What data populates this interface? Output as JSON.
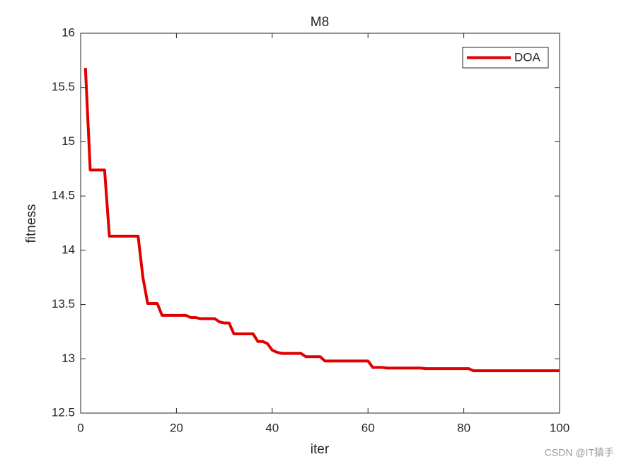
{
  "chart_data": {
    "type": "line",
    "title": "M8",
    "xlabel": "iter",
    "ylabel": "fitness",
    "x": [
      1,
      2,
      3,
      4,
      5,
      6,
      7,
      8,
      9,
      10,
      11,
      12,
      13,
      14,
      15,
      16,
      17,
      18,
      19,
      20,
      21,
      22,
      23,
      24,
      25,
      26,
      27,
      28,
      29,
      30,
      31,
      32,
      33,
      34,
      35,
      36,
      37,
      38,
      39,
      40,
      41,
      42,
      43,
      44,
      45,
      46,
      47,
      48,
      49,
      50,
      51,
      52,
      53,
      54,
      55,
      56,
      57,
      58,
      59,
      60,
      61,
      62,
      63,
      64,
      65,
      66,
      67,
      68,
      69,
      70,
      71,
      72,
      73,
      74,
      75,
      76,
      77,
      78,
      79,
      80,
      81,
      82,
      83,
      84,
      85,
      86,
      87,
      88,
      89,
      90,
      91,
      92,
      93,
      94,
      95,
      96,
      97,
      98,
      99,
      100
    ],
    "series": [
      {
        "name": "DOA",
        "color": "#e00000",
        "values": [
          15.68,
          14.74,
          14.74,
          14.74,
          14.74,
          14.13,
          14.13,
          14.13,
          14.13,
          14.13,
          14.13,
          14.13,
          13.75,
          13.51,
          13.51,
          13.51,
          13.4,
          13.4,
          13.4,
          13.4,
          13.4,
          13.4,
          13.38,
          13.38,
          13.37,
          13.37,
          13.37,
          13.37,
          13.34,
          13.33,
          13.33,
          13.23,
          13.23,
          13.23,
          13.23,
          13.23,
          13.16,
          13.16,
          13.14,
          13.08,
          13.06,
          13.05,
          13.05,
          13.05,
          13.05,
          13.05,
          13.02,
          13.02,
          13.02,
          13.02,
          12.98,
          12.98,
          12.98,
          12.98,
          12.98,
          12.98,
          12.98,
          12.98,
          12.98,
          12.98,
          12.92,
          12.92,
          12.92,
          12.915,
          12.915,
          12.915,
          12.915,
          12.915,
          12.915,
          12.915,
          12.915,
          12.91,
          12.91,
          12.91,
          12.91,
          12.91,
          12.91,
          12.91,
          12.91,
          12.91,
          12.91,
          12.89,
          12.89,
          12.89,
          12.89,
          12.89,
          12.89,
          12.89,
          12.89,
          12.89,
          12.89,
          12.89,
          12.89,
          12.89,
          12.89,
          12.89,
          12.89,
          12.89,
          12.89,
          12.89
        ]
      }
    ],
    "xlim": [
      0,
      100
    ],
    "xticks": [
      0,
      20,
      40,
      60,
      80,
      100
    ],
    "ylim": [
      12.5,
      16
    ],
    "yticks": [
      12.5,
      13,
      13.5,
      14,
      14.5,
      15,
      15.5,
      16
    ],
    "legend": "northeast",
    "watermark": "CSDN @IT猿手"
  }
}
